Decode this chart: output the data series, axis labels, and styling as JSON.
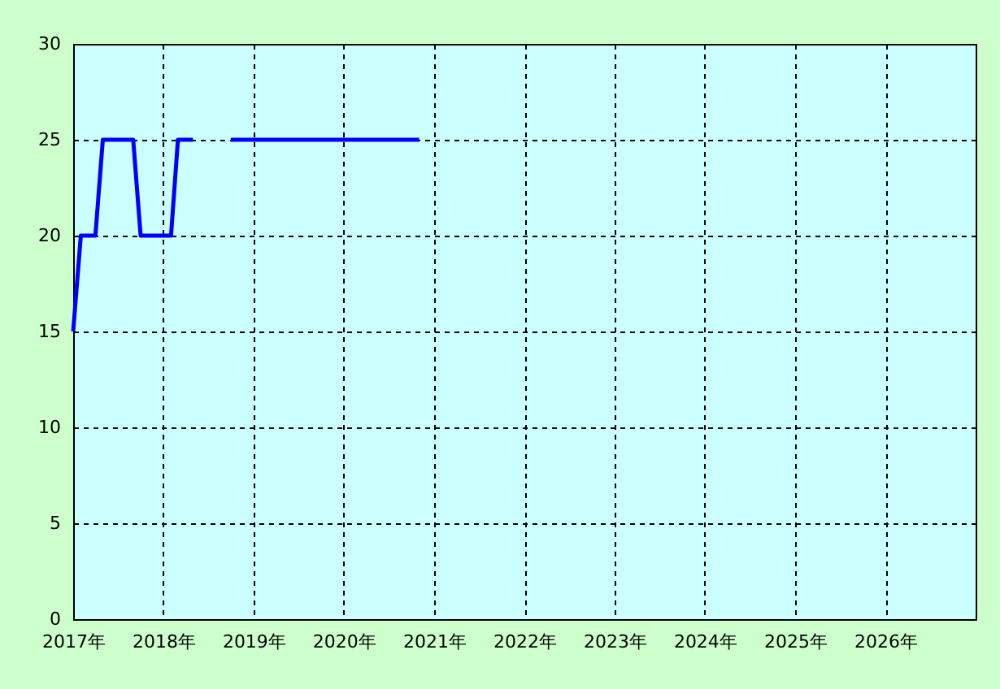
{
  "chart_data": {
    "type": "line",
    "x": [
      "2017-01",
      "2017-02",
      "2017-03",
      "2017-04",
      "2017-05",
      "2017-06",
      "2017-07",
      "2017-08",
      "2017-09",
      "2017-10",
      "2017-11",
      "2017-12",
      "2018-01",
      "2018-02",
      "2018-03",
      "2018-04",
      "2018-05",
      "2018-06",
      "2018-07",
      "2018-08",
      "2018-09",
      "2018-10",
      "2018-11",
      "2018-12",
      "2019-01",
      "2019-02",
      "2019-03",
      "2019-04",
      "2019-05",
      "2019-06",
      "2019-07",
      "2019-08",
      "2019-09",
      "2019-10",
      "2019-11",
      "2019-12",
      "2020-01",
      "2020-02",
      "2020-03",
      "2020-04",
      "2020-05",
      "2020-06",
      "2020-07",
      "2020-08",
      "2020-09",
      "2020-10",
      "2020-11"
    ],
    "series": [
      {
        "color": "#0000ff",
        "values": [
          15,
          20,
          20,
          20,
          25,
          25,
          25,
          25,
          25,
          20,
          20,
          20,
          20,
          20,
          25,
          25,
          25,
          null,
          null,
          null,
          null,
          25,
          25,
          25,
          25,
          25,
          25,
          25,
          25,
          25,
          25,
          25,
          25,
          25,
          25,
          25,
          25,
          25,
          25,
          25,
          25,
          25,
          25,
          25,
          25,
          25,
          25
        ]
      }
    ],
    "xlim": [
      "2017-01",
      "2027-01"
    ],
    "xticks": [
      {
        "value": "2017",
        "label": "2017年"
      },
      {
        "value": "2018",
        "label": "2018年"
      },
      {
        "value": "2019",
        "label": "2019年"
      },
      {
        "value": "2020",
        "label": "2020年"
      },
      {
        "value": "2021",
        "label": "2021年"
      },
      {
        "value": "2022",
        "label": "2022年"
      },
      {
        "value": "2023",
        "label": "2023年"
      },
      {
        "value": "2024",
        "label": "2024年"
      },
      {
        "value": "2025",
        "label": "2025年"
      },
      {
        "value": "2026",
        "label": "2026年"
      }
    ],
    "ylim": [
      0,
      30
    ],
    "yticks": [
      0,
      5,
      10,
      15,
      20,
      25,
      30
    ],
    "grid": true,
    "marker": "none",
    "line_style": "solid"
  }
}
